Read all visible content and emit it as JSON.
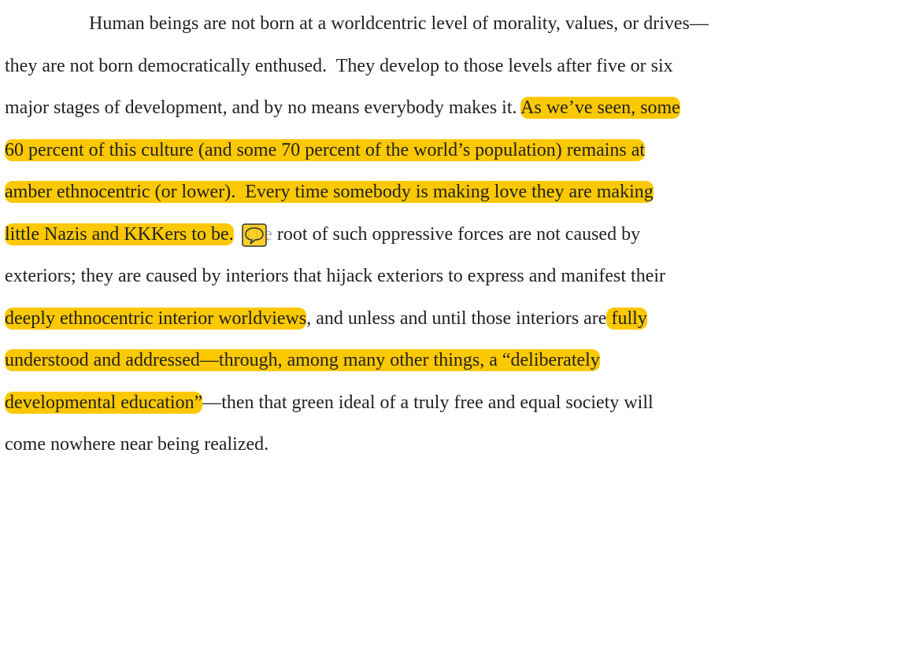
{
  "lines": [
    {
      "segments": [
        {
          "text": "Human beings are not born at a worldcentric level of morality, values, or drives—",
          "highlight": false
        }
      ]
    },
    {
      "segments": [
        {
          "text": "they are not born democratically enthused.  They develop to those levels after five or six",
          "highlight": false
        }
      ]
    },
    {
      "segments": [
        {
          "text": "major stages of development, and by no means everybody makes it. ",
          "highlight": false
        },
        {
          "text": "As we’ve seen, some",
          "highlight": true
        }
      ]
    },
    {
      "segments": [
        {
          "text": "60 percent of this culture (and some 70 percent of the world’s population) remains at",
          "highlight": true
        }
      ]
    },
    {
      "segments": [
        {
          "text": "amber ethnocentric (or lower).  Every time somebody is making love they are making",
          "highlight": true
        }
      ]
    },
    {
      "segments": [
        {
          "text": "little Nazis and KKKers to be.",
          "highlight": true
        },
        {
          "text": "  ",
          "highlight": false
        },
        {
          "text": "The",
          "highlight": false,
          "note": true
        },
        {
          "text": " root of such oppressive forces are not caused by",
          "highlight": false
        }
      ]
    },
    {
      "segments": [
        {
          "text": "exteriors; they are caused by interiors that hijack exteriors to express and manifest their",
          "highlight": false
        }
      ]
    },
    {
      "segments": [
        {
          "text": "deeply ethnocentric interior worldviews",
          "highlight": true
        },
        {
          "text": ", and unless and until those interiors are",
          "highlight": false
        },
        {
          "text": " fully",
          "highlight": true
        }
      ]
    },
    {
      "segments": [
        {
          "text": "understood and addressed—through, among many other things, a “deliberately",
          "highlight": true
        }
      ]
    },
    {
      "segments": [
        {
          "text": "developmental education”",
          "highlight": true
        },
        {
          "text": "—then that green ideal of a truly free and equal society will",
          "highlight": false
        }
      ]
    },
    {
      "segments": [
        {
          "text": "come nowhere near being realized.",
          "highlight": false
        }
      ]
    }
  ]
}
